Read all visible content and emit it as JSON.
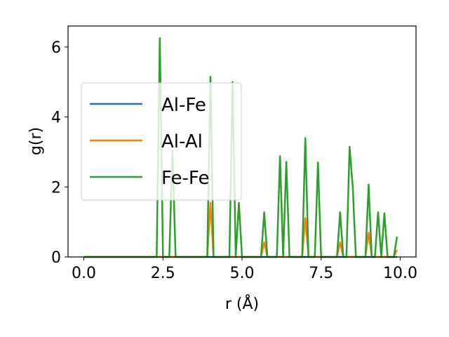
{
  "chart_data": {
    "type": "line",
    "title": "",
    "xlabel": "r (Å)",
    "ylabel": "g(r)",
    "xlim": [
      -0.5,
      10.5
    ],
    "ylim": [
      0,
      6.6
    ],
    "xticks": [
      0.0,
      2.5,
      5.0,
      7.5,
      10.0
    ],
    "xtick_labels": [
      "0.0",
      "2.5",
      "5.0",
      "7.5",
      "10.0"
    ],
    "yticks": [
      0,
      2,
      4,
      6
    ],
    "ytick_labels": [
      "0",
      "2",
      "4",
      "6"
    ],
    "grid": false,
    "legend_position": "center-left",
    "series": [
      {
        "name": "Al-Fe",
        "color": "#1f77b4",
        "x": [
          0,
          9.9
        ],
        "y": [
          0,
          0
        ]
      },
      {
        "name": "Al-Al",
        "color": "#ff7f0e",
        "x": [
          0,
          3.9,
          4.0,
          4.1,
          5.6,
          5.7,
          5.8,
          6.9,
          7.0,
          7.1,
          8.0,
          8.1,
          8.2,
          8.9,
          9.0,
          9.1,
          9.8,
          9.9
        ],
        "y": [
          0,
          0,
          1.55,
          0,
          0,
          0.42,
          0,
          0,
          1.12,
          0,
          0,
          0.42,
          0,
          0,
          0.7,
          0,
          0,
          0.2
        ]
      },
      {
        "name": "Fe-Fe",
        "color": "#2ca02c",
        "x": [
          0,
          2.3,
          2.4,
          2.5,
          2.7,
          2.8,
          2.9,
          3.9,
          4.0,
          4.1,
          4.6,
          4.7,
          4.8,
          4.9,
          5.0,
          5.6,
          5.7,
          5.8,
          6.1,
          6.2,
          6.3,
          6.4,
          6.5,
          6.9,
          7.0,
          7.1,
          7.3,
          7.4,
          7.5,
          8.0,
          8.1,
          8.2,
          8.3,
          8.4,
          8.5,
          8.6,
          8.9,
          9.0,
          9.1,
          9.2,
          9.3,
          9.4,
          9.5,
          9.6,
          9.8,
          9.9
        ],
        "y": [
          0,
          0,
          6.25,
          0,
          0,
          3.05,
          0,
          0,
          5.15,
          0,
          0,
          5.0,
          0,
          1.55,
          0,
          0,
          1.28,
          0,
          0,
          2.88,
          0,
          2.72,
          0,
          0,
          3.4,
          0,
          0,
          2.7,
          0,
          0,
          1.28,
          0,
          0,
          3.15,
          2.0,
          0,
          0,
          2.07,
          0,
          0,
          1.28,
          0,
          1.25,
          0,
          0,
          0.58
        ]
      }
    ]
  }
}
